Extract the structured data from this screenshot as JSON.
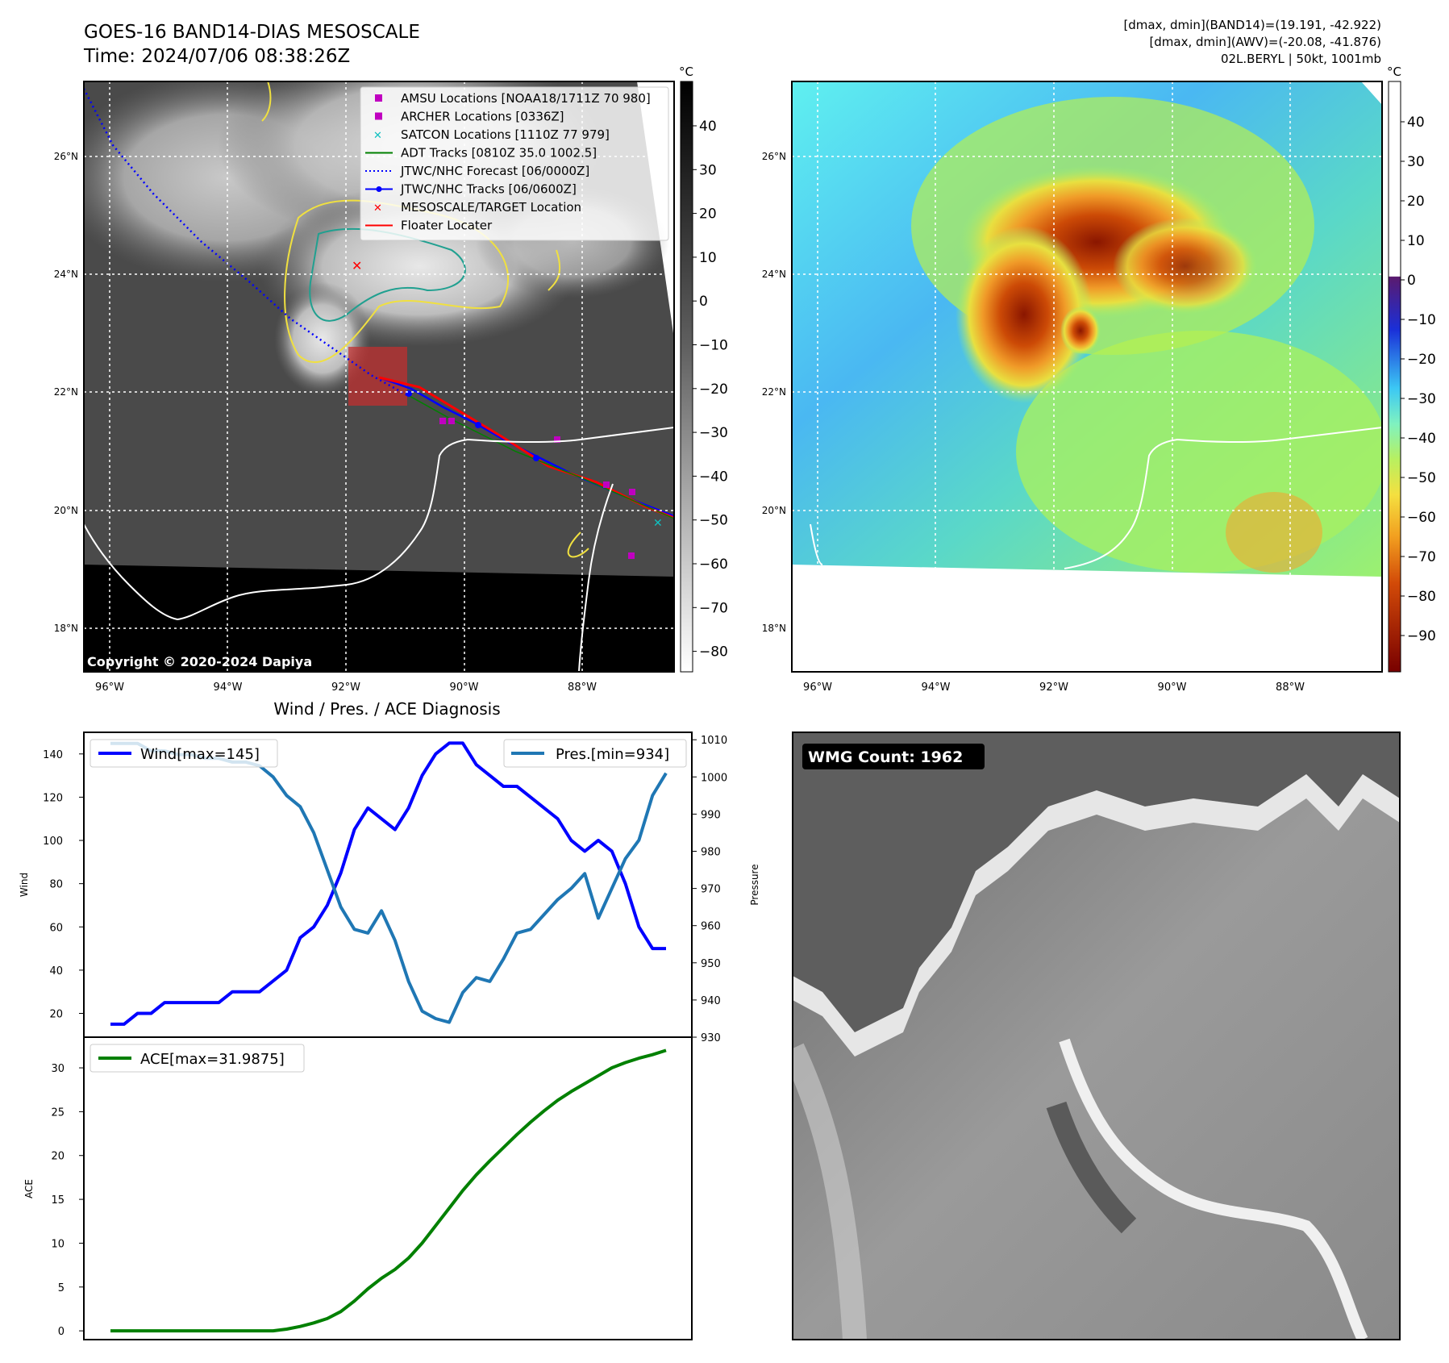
{
  "header": {
    "title": "GOES-16 BAND14-DIAS MESOSCALE",
    "time": "Time: 2024/07/06 08:38:26Z",
    "info_lines": [
      "[dmax, dmin](BAND14)=(19.191, -42.922)",
      "[dmax, dmin](AWV)=(-20.08, -41.876)",
      "02L.BERYL | 50kt, 1001mb"
    ]
  },
  "map_panels": {
    "lat_ticks": [
      "26°N",
      "24°N",
      "22°N",
      "20°N",
      "18°N"
    ],
    "lon_ticks": [
      "96°W",
      "94°W",
      "92°W",
      "90°W",
      "88°W"
    ],
    "copyright": "Copyright © 2020-2024 Dapiya",
    "colorbar_unit": "°C",
    "ir_colorbar_ticks": [
      "40",
      "30",
      "20",
      "10",
      "0",
      "−10",
      "−20",
      "−30",
      "−40",
      "−50",
      "−60",
      "−70",
      "−80"
    ],
    "awv_colorbar_ticks": [
      "40",
      "30",
      "20",
      "10",
      "0",
      "−10",
      "−20",
      "−30",
      "−40",
      "−50",
      "−60",
      "−70",
      "−80",
      "−90"
    ],
    "legend": [
      {
        "label": "AMSU Locations [NOAA18/1711Z 70 980]",
        "marker": "square",
        "color": "#c000c0"
      },
      {
        "label": "ARCHER Locations [0336Z]",
        "marker": "square",
        "color": "#c000c0"
      },
      {
        "label": "SATCON Locations [1110Z 77 979]",
        "marker": "x",
        "color": "#10c0c0"
      },
      {
        "label": "ADT Tracks [0810Z 35.0 1002.5]",
        "marker": "line",
        "color": "#008000"
      },
      {
        "label": "JTWC/NHC Forecast [06/0000Z]",
        "marker": "dotted",
        "color": "#0000ff"
      },
      {
        "label": "JTWC/NHC Tracks [06/0600Z]",
        "marker": "line-dot",
        "color": "#0000ff"
      },
      {
        "label": "MESOSCALE/TARGET Location",
        "marker": "x",
        "color": "#ff0000"
      },
      {
        "label": "Floater Locater",
        "marker": "line",
        "color": "#ff0000"
      }
    ]
  },
  "wmg": {
    "label": "WMG Count: 1962"
  },
  "chart_data": [
    {
      "type": "line",
      "title": "Wind / Pres. / ACE Diagnosis",
      "ylabel": "Wind",
      "ylabel_right": "Pressure",
      "ylim": [
        9,
        150
      ],
      "ylim_right": [
        930,
        1012
      ],
      "yticks": [
        20,
        40,
        60,
        80,
        100,
        120,
        140
      ],
      "yticks_right": [
        930,
        940,
        950,
        960,
        970,
        980,
        990,
        1000,
        1010
      ],
      "series": [
        {
          "name": "Wind[max=145]",
          "color": "#0000ff",
          "axis": "left",
          "values": [
            15,
            15,
            20,
            20,
            25,
            25,
            25,
            25,
            25,
            30,
            30,
            30,
            35,
            40,
            55,
            60,
            70,
            85,
            105,
            115,
            110,
            105,
            115,
            130,
            140,
            145,
            145,
            135,
            130,
            125,
            125,
            120,
            115,
            110,
            100,
            95,
            100,
            95,
            80,
            60,
            50,
            50
          ]
        },
        {
          "name": "Pres.[min=934]",
          "color": "#1f77b4",
          "axis": "right",
          "values": [
            1009,
            1009,
            1009,
            1007,
            1007,
            1006,
            1006,
            1005,
            1005,
            1004,
            1004,
            1003,
            1000,
            995,
            992,
            985,
            975,
            965,
            959,
            958,
            964,
            956,
            945,
            937,
            935,
            934,
            942,
            946,
            945,
            951,
            958,
            959,
            963,
            967,
            970,
            974,
            962,
            970,
            978,
            983,
            995,
            1001
          ]
        }
      ],
      "legend_position": "upper-left / upper-right"
    },
    {
      "type": "line",
      "ylabel": "ACE",
      "ylim": [
        -1,
        33.5
      ],
      "yticks": [
        0,
        5,
        10,
        15,
        20,
        25,
        30
      ],
      "series": [
        {
          "name": "ACE[max=31.9875]",
          "color": "#008000",
          "values": [
            0,
            0,
            0,
            0,
            0,
            0,
            0,
            0,
            0,
            0,
            0,
            0,
            0,
            0.2,
            0.5,
            0.9,
            1.4,
            2.2,
            3.4,
            4.8,
            6,
            7,
            8.3,
            10,
            12,
            14,
            16,
            17.8,
            19.4,
            20.9,
            22.4,
            23.8,
            25.1,
            26.3,
            27.3,
            28.2,
            29.1,
            30,
            30.6,
            31.1,
            31.5,
            31.9875
          ]
        }
      ],
      "legend_position": "upper-left"
    }
  ]
}
